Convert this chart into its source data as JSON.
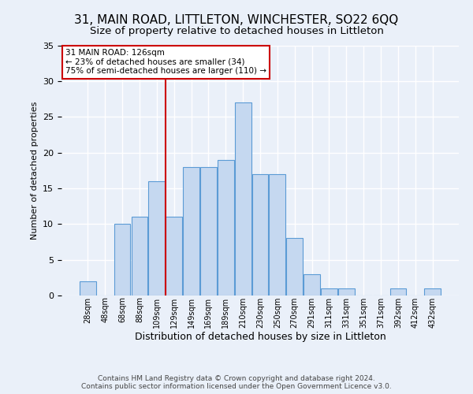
{
  "title1": "31, MAIN ROAD, LITTLETON, WINCHESTER, SO22 6QQ",
  "title2": "Size of property relative to detached houses in Littleton",
  "xlabel": "Distribution of detached houses by size in Littleton",
  "ylabel": "Number of detached properties",
  "annotation_line1": "31 MAIN ROAD: 126sqm",
  "annotation_line2": "← 23% of detached houses are smaller (34)",
  "annotation_line3": "75% of semi-detached houses are larger (110) →",
  "footer1": "Contains HM Land Registry data © Crown copyright and database right 2024.",
  "footer2": "Contains public sector information licensed under the Open Government Licence v3.0.",
  "bin_labels": [
    "28sqm",
    "48sqm",
    "68sqm",
    "88sqm",
    "109sqm",
    "129sqm",
    "149sqm",
    "169sqm",
    "189sqm",
    "210sqm",
    "230sqm",
    "250sqm",
    "270sqm",
    "291sqm",
    "311sqm",
    "331sqm",
    "351sqm",
    "371sqm",
    "392sqm",
    "412sqm",
    "432sqm"
  ],
  "bar_values": [
    2,
    0,
    10,
    11,
    16,
    11,
    18,
    18,
    19,
    27,
    17,
    17,
    8,
    3,
    1,
    1,
    0,
    0,
    1,
    0,
    1
  ],
  "bar_color": "#c5d8f0",
  "bar_edge_color": "#5b9bd5",
  "vline_color": "#cc0000",
  "ylim": [
    0,
    35
  ],
  "yticks": [
    0,
    5,
    10,
    15,
    20,
    25,
    30,
    35
  ],
  "bg_color": "#eaf0f9",
  "grid_color": "#ffffff",
  "annotation_box_color": "#ffffff",
  "annotation_box_edge": "#cc0000",
  "title1_fontsize": 11,
  "title2_fontsize": 9.5
}
